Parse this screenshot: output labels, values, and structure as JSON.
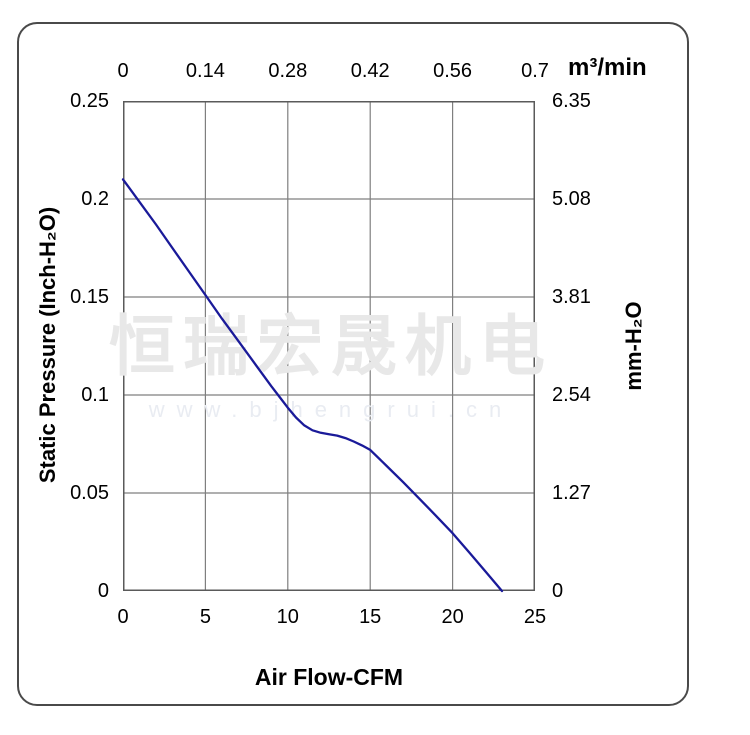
{
  "watermark": {
    "cn": "恒瑞宏晟机电",
    "url": "www.bjhengrui.cn"
  },
  "colors": {
    "curve": "#1a1a99",
    "grid": "#7f7f7f",
    "plot_border": "#5a5a5a",
    "card_border": "#4a4a4a",
    "watermark_cn": "#e8e8e8",
    "watermark_url": "#e9ecf2"
  },
  "chart_data": {
    "type": "line",
    "title": "",
    "grid": true,
    "legend": "none",
    "x_bottom": {
      "label": "Air Flow-CFM",
      "ticks": [
        "0",
        "5",
        "10",
        "15",
        "20",
        "25"
      ],
      "range": [
        0,
        25
      ]
    },
    "x_top": {
      "label": "m³/min",
      "ticks": [
        "0",
        "0.14",
        "0.28",
        "0.42",
        "0.56",
        "0.7"
      ],
      "range": [
        0,
        0.7
      ]
    },
    "y_left": {
      "label": "Static Pressure (Inch-H₂O)",
      "ticks": [
        "0.25",
        "0.2",
        "0.15",
        "0.1",
        "0.05",
        "0"
      ],
      "range": [
        0,
        0.25
      ]
    },
    "y_right": {
      "label": "mm-H₂O",
      "ticks": [
        "6.35",
        "5.08",
        "3.81",
        "2.54",
        "1.27",
        "0"
      ],
      "range": [
        0,
        6.35
      ]
    },
    "series": [
      {
        "name": "static-pressure-curve",
        "x_unit": "CFM",
        "y_unit": "Inch-H2O",
        "points": [
          [
            0,
            0.21
          ],
          [
            1,
            0.1985
          ],
          [
            2,
            0.187
          ],
          [
            3,
            0.175
          ],
          [
            4,
            0.163
          ],
          [
            5,
            0.151
          ],
          [
            6,
            0.139
          ],
          [
            7,
            0.1275
          ],
          [
            8,
            0.116
          ],
          [
            9,
            0.1045
          ],
          [
            9.5,
            0.099
          ],
          [
            10,
            0.0935
          ],
          [
            10.5,
            0.0885
          ],
          [
            11,
            0.0845
          ],
          [
            11.5,
            0.082
          ],
          [
            12,
            0.0807
          ],
          [
            12.5,
            0.08
          ],
          [
            13,
            0.0793
          ],
          [
            13.5,
            0.078
          ],
          [
            14,
            0.0763
          ],
          [
            14.5,
            0.0743
          ],
          [
            15,
            0.072
          ],
          [
            16,
            0.0638
          ],
          [
            17,
            0.0555
          ],
          [
            18,
            0.047
          ],
          [
            19,
            0.0383
          ],
          [
            20,
            0.0295
          ],
          [
            21,
            0.0198
          ],
          [
            22,
            0.0099
          ],
          [
            23,
            0
          ]
        ]
      }
    ]
  }
}
